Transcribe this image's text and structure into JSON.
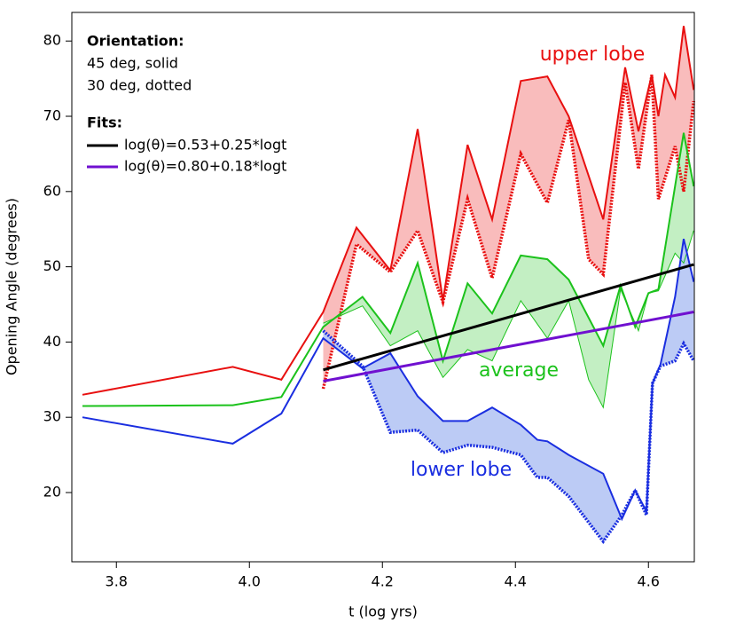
{
  "chart_data": {
    "type": "band-line",
    "x_label": "t (log yrs)",
    "y_label": "Opening Angle (degrees)",
    "xlim": [
      3.733,
      4.669
    ],
    "ylim": [
      10.8,
      83.8
    ],
    "xticks": [
      3.8,
      {
        "value": 4,
        "label": "4.0"
      },
      4.2,
      4.4,
      4.6
    ],
    "yticks": [
      20,
      30,
      40,
      50,
      60,
      70,
      80
    ],
    "legend": {
      "orientation_title": "Orientation:",
      "orientation_lines": [
        "45 deg, solid",
        "30 deg, dotted"
      ],
      "fits_title": "Fits:"
    },
    "groups": [
      {
        "label": "upper lobe",
        "color": "#e81010",
        "fill": "#f9bcbc",
        "solid": {
          "x": [
            3.749,
            3.975,
            4.048,
            4.111,
            4.161,
            4.212,
            4.253,
            4.291,
            4.328,
            4.365,
            4.408,
            4.448,
            4.48,
            4.532,
            4.565,
            4.585,
            4.605,
            4.615,
            4.625,
            4.64,
            4.653,
            4.668
          ],
          "values": [
            33.0,
            36.7,
            35.0,
            44.0,
            55.2,
            49.5,
            68.3,
            45.5,
            66.2,
            56.3,
            74.7,
            75.3,
            70.0,
            56.3,
            76.5,
            68.0,
            75.5,
            70.0,
            75.5,
            72.5,
            82.0,
            73.5
          ]
        },
        "dotted": {
          "x": [
            4.111,
            4.161,
            4.212,
            4.253,
            4.291,
            4.328,
            4.365,
            4.408,
            4.448,
            4.48,
            4.51,
            4.532,
            4.565,
            4.585,
            4.605,
            4.615,
            4.64,
            4.653,
            4.668
          ],
          "values": [
            33.8,
            53.0,
            49.3,
            54.8,
            45.3,
            59.0,
            48.5,
            65.0,
            58.5,
            69.5,
            51.0,
            49.0,
            74.5,
            63.0,
            75.5,
            59.0,
            66.0,
            60.0,
            72.0
          ]
        }
      },
      {
        "label": "average",
        "color": "#1cc21c",
        "fill": "#c3efc3",
        "solid": {
          "x": [
            3.749,
            3.975,
            4.048,
            4.111,
            4.17,
            4.212,
            4.253,
            4.291,
            4.328,
            4.365,
            4.408,
            4.448,
            4.48,
            4.532,
            4.558,
            4.58,
            4.6,
            4.615,
            4.653,
            4.668
          ],
          "values": [
            31.5,
            31.6,
            32.7,
            42.0,
            46.0,
            41.2,
            50.5,
            37.5,
            47.8,
            43.8,
            51.5,
            51.0,
            48.3,
            39.5,
            47.5,
            42.0,
            46.5,
            47.0,
            67.8,
            60.7
          ]
        },
        "dotted": {
          "x": [
            4.111,
            4.17,
            4.212,
            4.253,
            4.291,
            4.328,
            4.365,
            4.408,
            4.448,
            4.48,
            4.51,
            4.532,
            4.558,
            4.585,
            4.6,
            4.615,
            4.64,
            4.653,
            4.668
          ],
          "values": [
            42.5,
            44.8,
            39.5,
            41.5,
            35.3,
            39.0,
            37.5,
            45.5,
            40.5,
            45.5,
            35.0,
            31.3,
            47.0,
            41.5,
            46.5,
            46.8,
            51.8,
            50.5,
            54.8
          ]
        }
      },
      {
        "label": "lower lobe",
        "color": "#1a2ee0",
        "fill": "#bccbf5",
        "solid": {
          "x": [
            3.749,
            3.975,
            4.048,
            4.111,
            4.17,
            4.212,
            4.253,
            4.291,
            4.328,
            4.365,
            4.408,
            4.433,
            4.448,
            4.48,
            4.532,
            4.56,
            4.58,
            4.597,
            4.606,
            4.618,
            4.64,
            4.653,
            4.668
          ],
          "values": [
            30.0,
            26.5,
            30.5,
            40.5,
            36.5,
            38.5,
            32.8,
            29.5,
            29.5,
            31.3,
            29.0,
            27.0,
            26.8,
            25.0,
            22.5,
            16.5,
            20.3,
            17.5,
            34.5,
            37.0,
            46.0,
            53.7,
            48.0
          ]
        },
        "dotted": {
          "x": [
            4.111,
            4.17,
            4.212,
            4.253,
            4.291,
            4.328,
            4.365,
            4.408,
            4.433,
            4.448,
            4.48,
            4.532,
            4.56,
            4.58,
            4.597,
            4.606,
            4.618,
            4.64,
            4.653,
            4.668
          ],
          "values": [
            41.5,
            36.8,
            28.0,
            28.3,
            25.3,
            26.3,
            26.0,
            25.0,
            22.0,
            22.0,
            19.5,
            13.5,
            17.0,
            20.3,
            17.0,
            34.5,
            36.8,
            37.5,
            39.8,
            37.5
          ]
        }
      }
    ],
    "fits": [
      {
        "label": "log(θ)=0.53+0.25*logt",
        "color": "#000000",
        "x": [
          4.111,
          4.668
        ],
        "values": [
          36.3,
          50.3
        ]
      },
      {
        "label": "log(θ)=0.80+0.18*logt",
        "color": "#7010d0",
        "x": [
          4.111,
          4.668
        ],
        "values": [
          34.8,
          44.0
        ]
      }
    ]
  }
}
